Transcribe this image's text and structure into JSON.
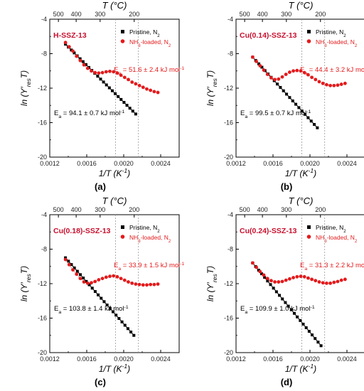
{
  "chart_data": [
    {
      "type": "scatter",
      "panel_label": "(a)",
      "sample": "H-SSZ-13",
      "xlabel": "1/T (K⁻¹)",
      "ylabel": "ln (Y′resT)",
      "top_xlabel": "T (°C)",
      "xlim": [
        0.0012,
        0.0026
      ],
      "ylim": [
        -20,
        -4
      ],
      "xticks": [
        "0.0012",
        "0.0016",
        "0.0020",
        "0.0024"
      ],
      "yticks": [
        "-4",
        "-8",
        "-12",
        "-16",
        "-20"
      ],
      "top_ticks": [
        "500",
        "400",
        "300",
        "200"
      ],
      "legend": {
        "pristine": "Pristine, N2",
        "nh3": "NH3-loaded, N2",
        "placement": "top-right"
      },
      "ea_nh3": "Ea = 51.6 ± 2.4 kJ mol-1",
      "ea_pristine": "Ea = 94.1 ± 0.7 kJ mol-1",
      "dashed_T": [
        250,
        190
      ],
      "pristine": {
        "x0": 0.00137,
        "y0": -6.9,
        "x1": 0.00213,
        "y1": -15.0,
        "n": 25
      },
      "nh3": {
        "x": [
          0.00137,
          0.00141,
          0.00145,
          0.00149,
          0.00153,
          0.00157,
          0.00161,
          0.00165,
          0.00169,
          0.00173,
          0.00177,
          0.00181,
          0.00185,
          0.00189,
          0.00193,
          0.00197,
          0.00201,
          0.00205,
          0.00209,
          0.00213,
          0.00217,
          0.00221,
          0.00225,
          0.00229,
          0.00233,
          0.00237
        ],
        "y": [
          -6.7,
          -7.2,
          -7.7,
          -8.3,
          -8.8,
          -9.3,
          -9.7,
          -10.0,
          -10.2,
          -10.25,
          -10.2,
          -10.1,
          -10.05,
          -10.1,
          -10.25,
          -10.5,
          -10.75,
          -11.0,
          -11.3,
          -11.5,
          -11.7,
          -11.9,
          -12.1,
          -12.25,
          -12.4,
          -12.5
        ]
      }
    },
    {
      "type": "scatter",
      "panel_label": "(b)",
      "sample": "Cu(0.14)-SSZ-13",
      "xlabel": "1/T (K⁻¹)",
      "ylabel": "ln (Y′resT)",
      "top_xlabel": "T (°C)",
      "xlim": [
        0.0012,
        0.0026
      ],
      "ylim": [
        -20,
        -4
      ],
      "xticks": [
        "0.0012",
        "0.0016",
        "0.0020",
        "0.0024"
      ],
      "yticks": [
        "-4",
        "-8",
        "-12",
        "-16",
        "-20"
      ],
      "top_ticks": [
        "500",
        "400",
        "300",
        "200"
      ],
      "legend": {
        "pristine": "Pristine, N2",
        "nh3": "NH3-loaded, N2",
        "placement": "top-right"
      },
      "ea_nh3": "Ea = 44.4 ± 3.2 kJ mol-1",
      "ea_pristine": "Ea = 99.5 ± 0.7 kJ mol-1",
      "dashed_T": [
        250,
        190
      ],
      "pristine": {
        "x0": 0.00138,
        "y0": -8.4,
        "x1": 0.00208,
        "y1": -16.6,
        "n": 22
      },
      "nh3": {
        "x": [
          0.00138,
          0.00142,
          0.00146,
          0.0015,
          0.00154,
          0.00158,
          0.00162,
          0.00166,
          0.0017,
          0.00174,
          0.00178,
          0.00182,
          0.00186,
          0.0019,
          0.00194,
          0.00198,
          0.00202,
          0.00206,
          0.0021,
          0.00214,
          0.00218,
          0.00222,
          0.00226,
          0.0023,
          0.00234,
          0.00238
        ],
        "y": [
          -8.4,
          -8.9,
          -9.4,
          -9.9,
          -10.4,
          -10.8,
          -11.0,
          -10.95,
          -10.7,
          -10.4,
          -10.15,
          -10.0,
          -9.95,
          -10.0,
          -10.2,
          -10.45,
          -10.75,
          -11.0,
          -11.25,
          -11.45,
          -11.6,
          -11.7,
          -11.7,
          -11.65,
          -11.55,
          -11.45
        ]
      }
    },
    {
      "type": "scatter",
      "panel_label": "(c)",
      "sample": "Cu(0.18)-SSZ-13",
      "xlabel": "1/T (K⁻¹)",
      "ylabel": "ln (Y′resT)",
      "top_xlabel": "T (°C)",
      "xlim": [
        0.0012,
        0.0026
      ],
      "ylim": [
        -20,
        -4
      ],
      "xticks": [
        "0.0012",
        "0.0016",
        "0.0020",
        "0.0024"
      ],
      "yticks": [
        "-4",
        "-8",
        "-12",
        "-16",
        "-20"
      ],
      "top_ticks": [
        "500",
        "400",
        "300",
        "200"
      ],
      "legend": {
        "pristine": "Pristine, N2",
        "nh3": "NH3-loaded, N2",
        "placement": "top-right"
      },
      "ea_nh3": "Ea = 33.9 ± 1.5 kJ mol-1",
      "ea_pristine": "Ea = 103.8 ± 1.4 kJ mol-1",
      "dashed_T": [
        250,
        190
      ],
      "pristine": {
        "x0": 0.00137,
        "y0": -9.0,
        "x1": 0.00211,
        "y1": -18.0,
        "n": 24
      },
      "nh3": {
        "x": [
          0.00137,
          0.00141,
          0.00145,
          0.00149,
          0.00153,
          0.00157,
          0.00161,
          0.00165,
          0.00169,
          0.00173,
          0.00177,
          0.00181,
          0.00185,
          0.00189,
          0.00193,
          0.00197,
          0.00201,
          0.00205,
          0.00209,
          0.00213,
          0.00217,
          0.00221,
          0.00225,
          0.00229,
          0.00233,
          0.00237
        ],
        "y": [
          -9.2,
          -9.8,
          -10.4,
          -10.9,
          -11.4,
          -11.8,
          -11.95,
          -11.9,
          -11.75,
          -11.55,
          -11.4,
          -11.25,
          -11.15,
          -11.1,
          -11.2,
          -11.4,
          -11.6,
          -11.8,
          -11.95,
          -12.05,
          -12.1,
          -12.15,
          -12.15,
          -12.1,
          -12.1,
          -12.05
        ]
      }
    },
    {
      "type": "scatter",
      "panel_label": "(d)",
      "sample": "Cu(0.24)-SSZ-13",
      "xlabel": "1/T (K⁻¹)",
      "ylabel": "ln (Y′resT)",
      "top_xlabel": "T (°C)",
      "xlim": [
        0.0012,
        0.0026
      ],
      "ylim": [
        -20,
        -4
      ],
      "xticks": [
        "0.0012",
        "0.0016",
        "0.0020",
        "0.0024"
      ],
      "yticks": [
        "-4",
        "-8",
        "-12",
        "-16",
        "-20"
      ],
      "top_ticks": [
        "500",
        "400",
        "300",
        "200"
      ],
      "legend": {
        "pristine": "Pristine, N2",
        "nh3": "NH3-loaded, N2",
        "placement": "top-right"
      },
      "ea_nh3": "Ea = 31.3 ± 2.2 kJ mol-1",
      "ea_pristine": "Ea = 109.9 ± 1.0 kJ mol-1",
      "dashed_T": [
        250,
        190
      ],
      "pristine": {
        "x0": 0.00138,
        "y0": -9.6,
        "x1": 0.00212,
        "y1": -19.2,
        "n": 24
      },
      "nh3": {
        "x": [
          0.00138,
          0.00142,
          0.00146,
          0.0015,
          0.00154,
          0.00158,
          0.00162,
          0.00166,
          0.0017,
          0.00174,
          0.00178,
          0.00182,
          0.00186,
          0.0019,
          0.00194,
          0.00198,
          0.00202,
          0.00206,
          0.0021,
          0.00214,
          0.00218,
          0.00222,
          0.00226,
          0.0023,
          0.00234,
          0.00238
        ],
        "y": [
          -9.6,
          -10.1,
          -10.6,
          -11.0,
          -11.4,
          -11.65,
          -11.8,
          -11.8,
          -11.75,
          -11.6,
          -11.45,
          -11.3,
          -11.2,
          -11.15,
          -11.2,
          -11.35,
          -11.5,
          -11.65,
          -11.8,
          -11.9,
          -11.95,
          -11.95,
          -11.85,
          -11.75,
          -11.6,
          -11.5
        ]
      }
    }
  ]
}
